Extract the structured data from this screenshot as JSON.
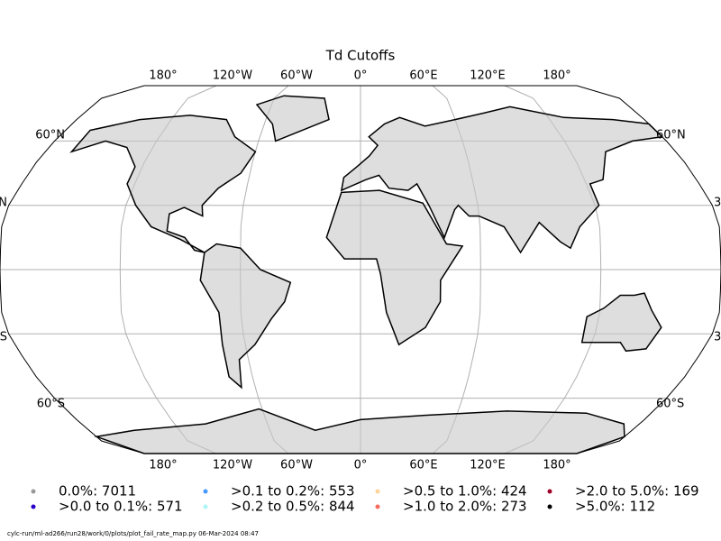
{
  "title": "Td Cutoffs",
  "graticule": {
    "lon_labels_top": [
      "180°",
      "120°W",
      "60°W",
      "0°",
      "60°E",
      "120°E",
      "180°"
    ],
    "lon_labels_bottom": [
      "180°",
      "120°W",
      "60°W",
      "0°",
      "60°E",
      "120°E",
      "180°"
    ],
    "lat_labels_left": [
      "60°N",
      "N",
      "S",
      "60°S"
    ],
    "lat_labels_right": [
      "60°N",
      "3",
      "3",
      "60°S"
    ]
  },
  "legend": [
    {
      "label": "0.0%: 7011",
      "color": "#999999"
    },
    {
      "label": ">0.0 to 0.1%: 571",
      "color": "#2a00c8"
    },
    {
      "label": ">0.1 to 0.2%: 553",
      "color": "#4499ff"
    },
    {
      "label": ">0.2 to 0.5%: 844",
      "color": "#aef5f5"
    },
    {
      "label": ">0.5 to 1.0%: 424",
      "color": "#ffd49a"
    },
    {
      "label": ">1.0 to 2.0%: 273",
      "color": "#f86a5c"
    },
    {
      "label": ">2.0 to 5.0%: 169",
      "color": "#a00028"
    },
    {
      "label": ">5.0%: 112",
      "color": "#000000"
    }
  ],
  "footer": "cylc-run/ml-ad266/run28/work/0/plots/plot_fail_rate_map.py   06-Mar-2024 08:47"
}
